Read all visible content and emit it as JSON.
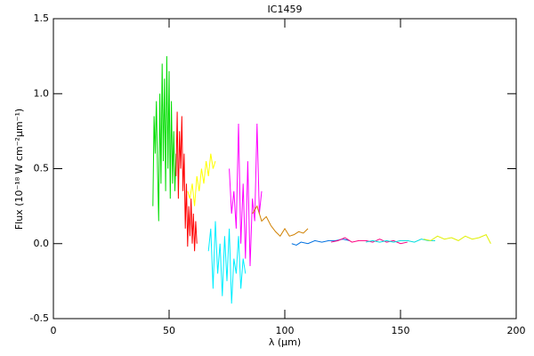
{
  "chart_data": {
    "type": "line",
    "title": "IC1459",
    "x_label": "λ (μm)",
    "y_label": "Flux (10⁻¹⁸ W cm⁻²μm⁻¹)",
    "xlim": [
      0,
      200
    ],
    "xticks": [
      0,
      50,
      100,
      150,
      200
    ],
    "ylim": [
      -0.5,
      1.5
    ],
    "yticks": [
      -0.5,
      {
        "value": 0,
        "label": "0.0"
      },
      0.5,
      {
        "value": 1,
        "label": "1.0"
      },
      1.5
    ],
    "series": [
      {
        "color": "#00dd00",
        "x": [
          43,
          43.5,
          44,
          44.5,
          45,
          45.5,
          46,
          46.5,
          47,
          47.5,
          48,
          48.5,
          49,
          49.5,
          50,
          50.5,
          51,
          51.5,
          52,
          52.5,
          53
        ],
        "values": [
          0.25,
          0.85,
          0.6,
          0.95,
          0.5,
          0.15,
          1.0,
          0.4,
          1.2,
          0.55,
          1.1,
          0.35,
          1.25,
          0.5,
          1.15,
          0.3,
          0.95,
          0.4,
          0.75,
          0.35,
          0.6
        ]
      },
      {
        "color": "#ff0000",
        "x": [
          53,
          53.5,
          54,
          54.5,
          55,
          55.5,
          56,
          56.5,
          57,
          57.5,
          58,
          58.5,
          59,
          59.5,
          60,
          60.5,
          61,
          61.5,
          62
        ],
        "values": [
          0.45,
          0.88,
          0.3,
          0.75,
          0.5,
          0.85,
          0.35,
          0.6,
          0.1,
          0.4,
          -0.02,
          0.25,
          0.05,
          0.3,
          0.0,
          0.2,
          -0.05,
          0.15,
          0.0
        ]
      },
      {
        "color": "#ffff00",
        "x": [
          58,
          59,
          60,
          61,
          62,
          63,
          64,
          65,
          66,
          67,
          68,
          69,
          70
        ],
        "values": [
          0.35,
          0.3,
          0.4,
          0.25,
          0.45,
          0.35,
          0.5,
          0.4,
          0.55,
          0.45,
          0.6,
          0.5,
          0.55
        ]
      },
      {
        "color": "#00eeff",
        "x": [
          67,
          68,
          69,
          70,
          71,
          72,
          73,
          74,
          75,
          76,
          77,
          78,
          79,
          80,
          81,
          82,
          83
        ],
        "values": [
          -0.05,
          0.1,
          -0.3,
          0.15,
          -0.2,
          0.0,
          -0.35,
          0.05,
          -0.25,
          0.1,
          -0.4,
          -0.1,
          -0.2,
          0.05,
          -0.3,
          -0.1,
          -0.2
        ]
      },
      {
        "color": "#ff00ff",
        "x": [
          76,
          77,
          78,
          79,
          80,
          81,
          82,
          83,
          84,
          85,
          86,
          87,
          88,
          89,
          90
        ],
        "values": [
          0.5,
          0.2,
          0.35,
          0.1,
          0.8,
          0.0,
          0.4,
          -0.1,
          0.55,
          -0.15,
          0.3,
          0.15,
          0.8,
          0.2,
          0.35
        ]
      },
      {
        "color": "#d08000",
        "x": [
          86,
          88,
          90,
          92,
          94,
          96,
          98,
          100,
          102,
          104,
          106,
          108,
          110
        ],
        "values": [
          0.2,
          0.25,
          0.15,
          0.18,
          0.12,
          0.08,
          0.05,
          0.1,
          0.05,
          0.06,
          0.08,
          0.07,
          0.1
        ]
      },
      {
        "color": "#0070e0",
        "x": [
          103,
          105,
          107,
          110,
          113,
          116,
          119,
          122,
          125,
          128
        ],
        "values": [
          0.0,
          -0.01,
          0.01,
          0.0,
          0.02,
          0.01,
          0.02,
          0.02,
          0.03,
          0.02
        ]
      },
      {
        "color": "#ff0080",
        "x": [
          120,
          123,
          126,
          129,
          132,
          135,
          138,
          141,
          144,
          147,
          150,
          153
        ],
        "values": [
          0.01,
          0.02,
          0.04,
          0.01,
          0.02,
          0.02,
          0.01,
          0.03,
          0.01,
          0.02,
          0.0,
          0.01
        ]
      },
      {
        "color": "#00dddd",
        "x": [
          135,
          138,
          141,
          144,
          147,
          150,
          153,
          156,
          159,
          162,
          165
        ],
        "values": [
          0.01,
          0.02,
          0.01,
          0.02,
          0.01,
          0.02,
          0.02,
          0.01,
          0.03,
          0.02,
          0.02
        ]
      },
      {
        "color": "#e0f000",
        "x": [
          160,
          163,
          166,
          169,
          172,
          175,
          178,
          181,
          184,
          187,
          189
        ],
        "values": [
          0.03,
          0.02,
          0.05,
          0.03,
          0.04,
          0.02,
          0.05,
          0.03,
          0.04,
          0.06,
          0.0
        ]
      }
    ]
  }
}
